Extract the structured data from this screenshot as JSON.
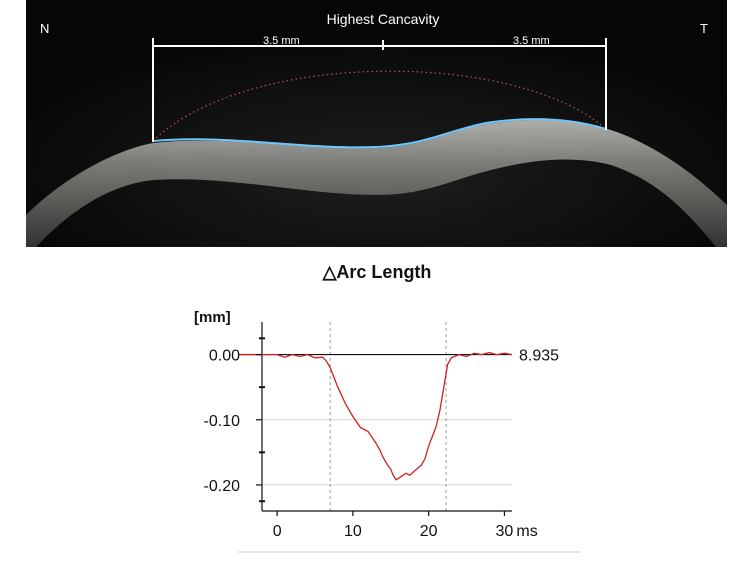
{
  "scan": {
    "left_label": "N",
    "right_label": "T",
    "caption": "Highest Cancavity",
    "left_distance": "3.5 mm",
    "right_distance": "3.5 mm"
  },
  "chart_data": {
    "type": "line",
    "title": "△Arc Length",
    "ylabel": "[mm]",
    "xlabel": "ms",
    "x_ticks": [
      "0",
      "10",
      "20",
      "30"
    ],
    "y_ticks": [
      "0.00",
      "-0.10",
      "-0.20"
    ],
    "xlim": [
      -2,
      31
    ],
    "ylim": [
      -0.24,
      0.05
    ],
    "reference_value": "8.935",
    "markers_x": [
      7,
      22.3
    ],
    "series": [
      {
        "color": "#cc2222",
        "x": [
          -2,
          0,
          1,
          2,
          3,
          4,
          5,
          6,
          6.5,
          7,
          7.5,
          8,
          8.5,
          9,
          10,
          11,
          12,
          13,
          13.5,
          14,
          14.5,
          15,
          15.3,
          15.7,
          16,
          16.5,
          17,
          17.5,
          18,
          18.5,
          19,
          19.5,
          20,
          20.5,
          21,
          21.5,
          22,
          22.5,
          23,
          24,
          25,
          26,
          27,
          28,
          29,
          30,
          31
        ],
        "y": [
          0,
          0,
          -0.004,
          0,
          -0.003,
          0,
          -0.005,
          -0.004,
          -0.01,
          -0.02,
          -0.035,
          -0.05,
          -0.062,
          -0.075,
          -0.095,
          -0.112,
          -0.118,
          -0.135,
          -0.145,
          -0.158,
          -0.168,
          -0.176,
          -0.185,
          -0.192,
          -0.19,
          -0.186,
          -0.182,
          -0.185,
          -0.18,
          -0.175,
          -0.17,
          -0.16,
          -0.14,
          -0.125,
          -0.11,
          -0.085,
          -0.05,
          -0.015,
          -0.005,
          0,
          -0.003,
          0.002,
          0,
          0.003,
          0,
          0.002,
          0
        ]
      }
    ]
  }
}
